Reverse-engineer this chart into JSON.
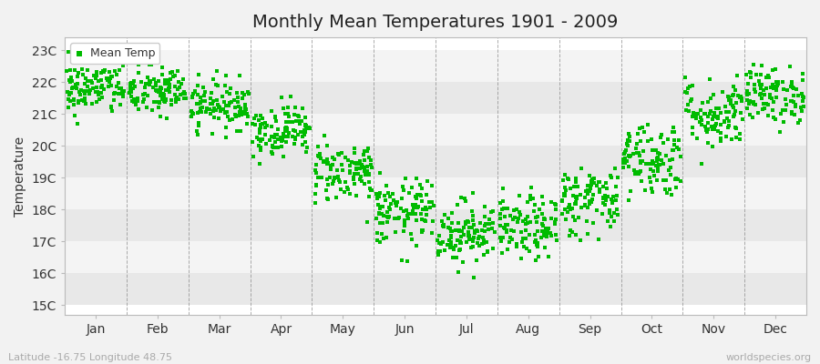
{
  "title": "Monthly Mean Temperatures 1901 - 2009",
  "ylabel": "Temperature",
  "xlabel_labels": [
    "Jan",
    "Feb",
    "Mar",
    "Apr",
    "May",
    "Jun",
    "Jul",
    "Aug",
    "Sep",
    "Oct",
    "Nov",
    "Dec"
  ],
  "footer_left": "Latitude -16.75 Longitude 48.75",
  "footer_right": "worldspecies.org",
  "legend_label": "Mean Temp",
  "yticks": [
    15,
    16,
    17,
    18,
    19,
    20,
    21,
    22,
    23
  ],
  "ytick_labels": [
    "15C",
    "16C",
    "17C",
    "18C",
    "19C",
    "20C",
    "21C",
    "22C",
    "23C"
  ],
  "ylim": [
    14.7,
    23.4
  ],
  "dot_color": "#00bb00",
  "dot_marker": "s",
  "dot_size": 5,
  "background_color": "#f2f2f2",
  "plot_bg_color": "#ffffff",
  "band_color_dark": "#e8e8e8",
  "band_color_light": "#f4f4f4",
  "vline_color": "#888888",
  "n_years": 109,
  "monthly_means": [
    21.8,
    21.7,
    21.3,
    20.5,
    19.2,
    17.9,
    17.3,
    17.4,
    18.3,
    19.6,
    21.0,
    21.6
  ],
  "monthly_stds": [
    0.42,
    0.4,
    0.38,
    0.4,
    0.48,
    0.52,
    0.5,
    0.5,
    0.55,
    0.6,
    0.55,
    0.45
  ],
  "monthly_mins": [
    20.5,
    20.6,
    20.2,
    19.4,
    17.6,
    15.9,
    15.7,
    15.8,
    16.3,
    17.6,
    19.1,
    20.2
  ],
  "monthly_maxs": [
    23.1,
    22.8,
    22.4,
    22.2,
    20.4,
    19.4,
    18.7,
    18.8,
    20.2,
    21.7,
    22.7,
    22.7
  ]
}
